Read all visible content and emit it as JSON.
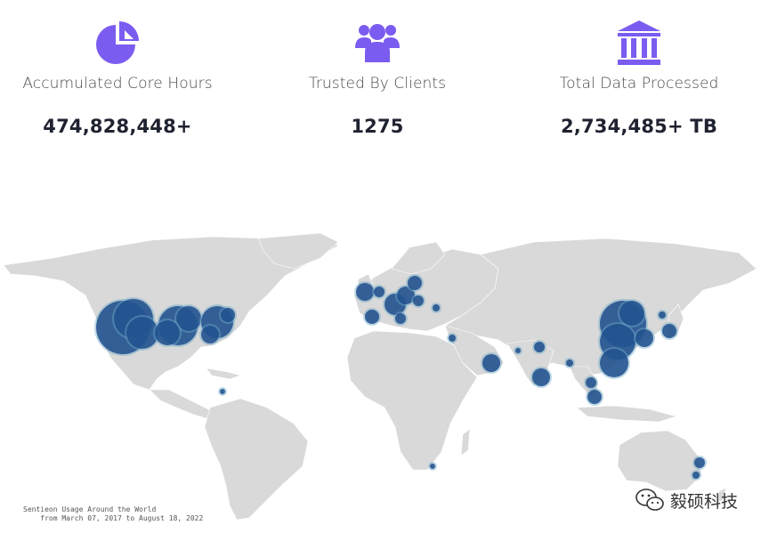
{
  "stats": [
    {
      "icon": "pie-chart-icon",
      "label": "Accumulated Core Hours",
      "value": "474,828,448+"
    },
    {
      "icon": "users-group-icon",
      "label": "Trusted By Clients",
      "value": "1275"
    },
    {
      "icon": "bank-building-icon",
      "label": "Total Data Processed",
      "value": "2,734,485+ TB"
    }
  ],
  "colors": {
    "accent": "#7b5cf0",
    "land": "#d9d9d9",
    "bubble": "#1f4e8c",
    "bubble_light": "#6fa8c8"
  },
  "map": {
    "caption_line1": "Sentieon Usage Around the World",
    "caption_line2": "    from March 07, 2017 to August 18, 2022"
  },
  "watermark": {
    "icon": "wechat-icon",
    "text": "毅硕科技"
  }
}
